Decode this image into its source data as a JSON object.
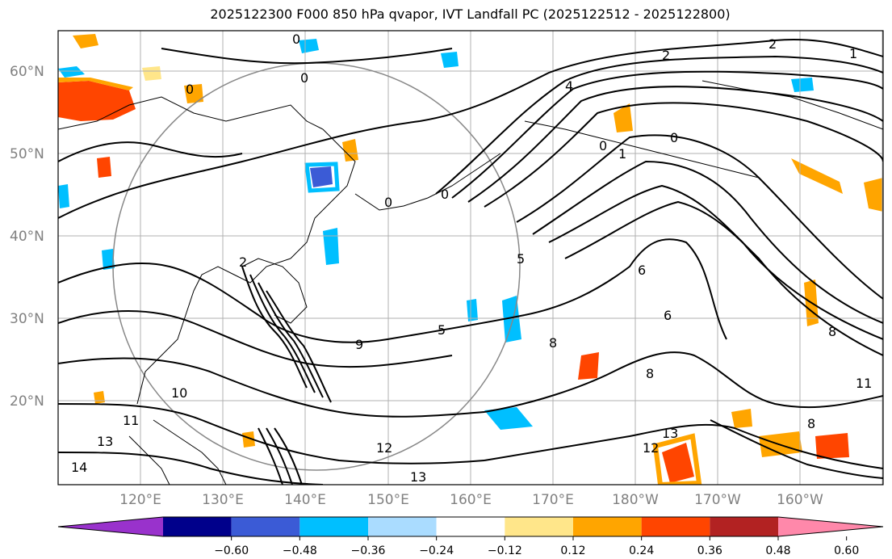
{
  "title": "2025122300 F000 850 hPa qvapor, IVT Landfall PC (2025122512 - 2025122800)",
  "map": {
    "lat_ticks": [
      "60°N",
      "50°N",
      "40°N",
      "30°N",
      "20°N"
    ],
    "lon_ticks": [
      "120°E",
      "130°E",
      "140°E",
      "150°E",
      "160°E",
      "170°E",
      "180°W",
      "170°W",
      "160°W"
    ],
    "contour_labels": [
      "0",
      "0",
      "0",
      "0",
      "0",
      "0",
      "0",
      "2",
      "2",
      "2",
      "1",
      "4",
      "5",
      "5",
      "6",
      "6",
      "8",
      "8",
      "8",
      "8",
      "9",
      "10",
      "11",
      "11",
      "12",
      "12",
      "13",
      "13",
      "13",
      "14",
      "1"
    ],
    "coast_color": "#000000",
    "grid_color": "#b0b0b0"
  },
  "colorbar": {
    "ticks": [
      "−0.60",
      "−0.48",
      "−0.36",
      "−0.24",
      "−0.12",
      "0.12",
      "0.24",
      "0.36",
      "0.48",
      "0.60"
    ],
    "colors": [
      "#9932cc",
      "#00008b",
      "#3b5bd6",
      "#00bfff",
      "#aadcff",
      "#ffffff",
      "#ffe68a",
      "#ffa500",
      "#ff4500",
      "#b22222",
      "#ff88aa"
    ]
  }
}
